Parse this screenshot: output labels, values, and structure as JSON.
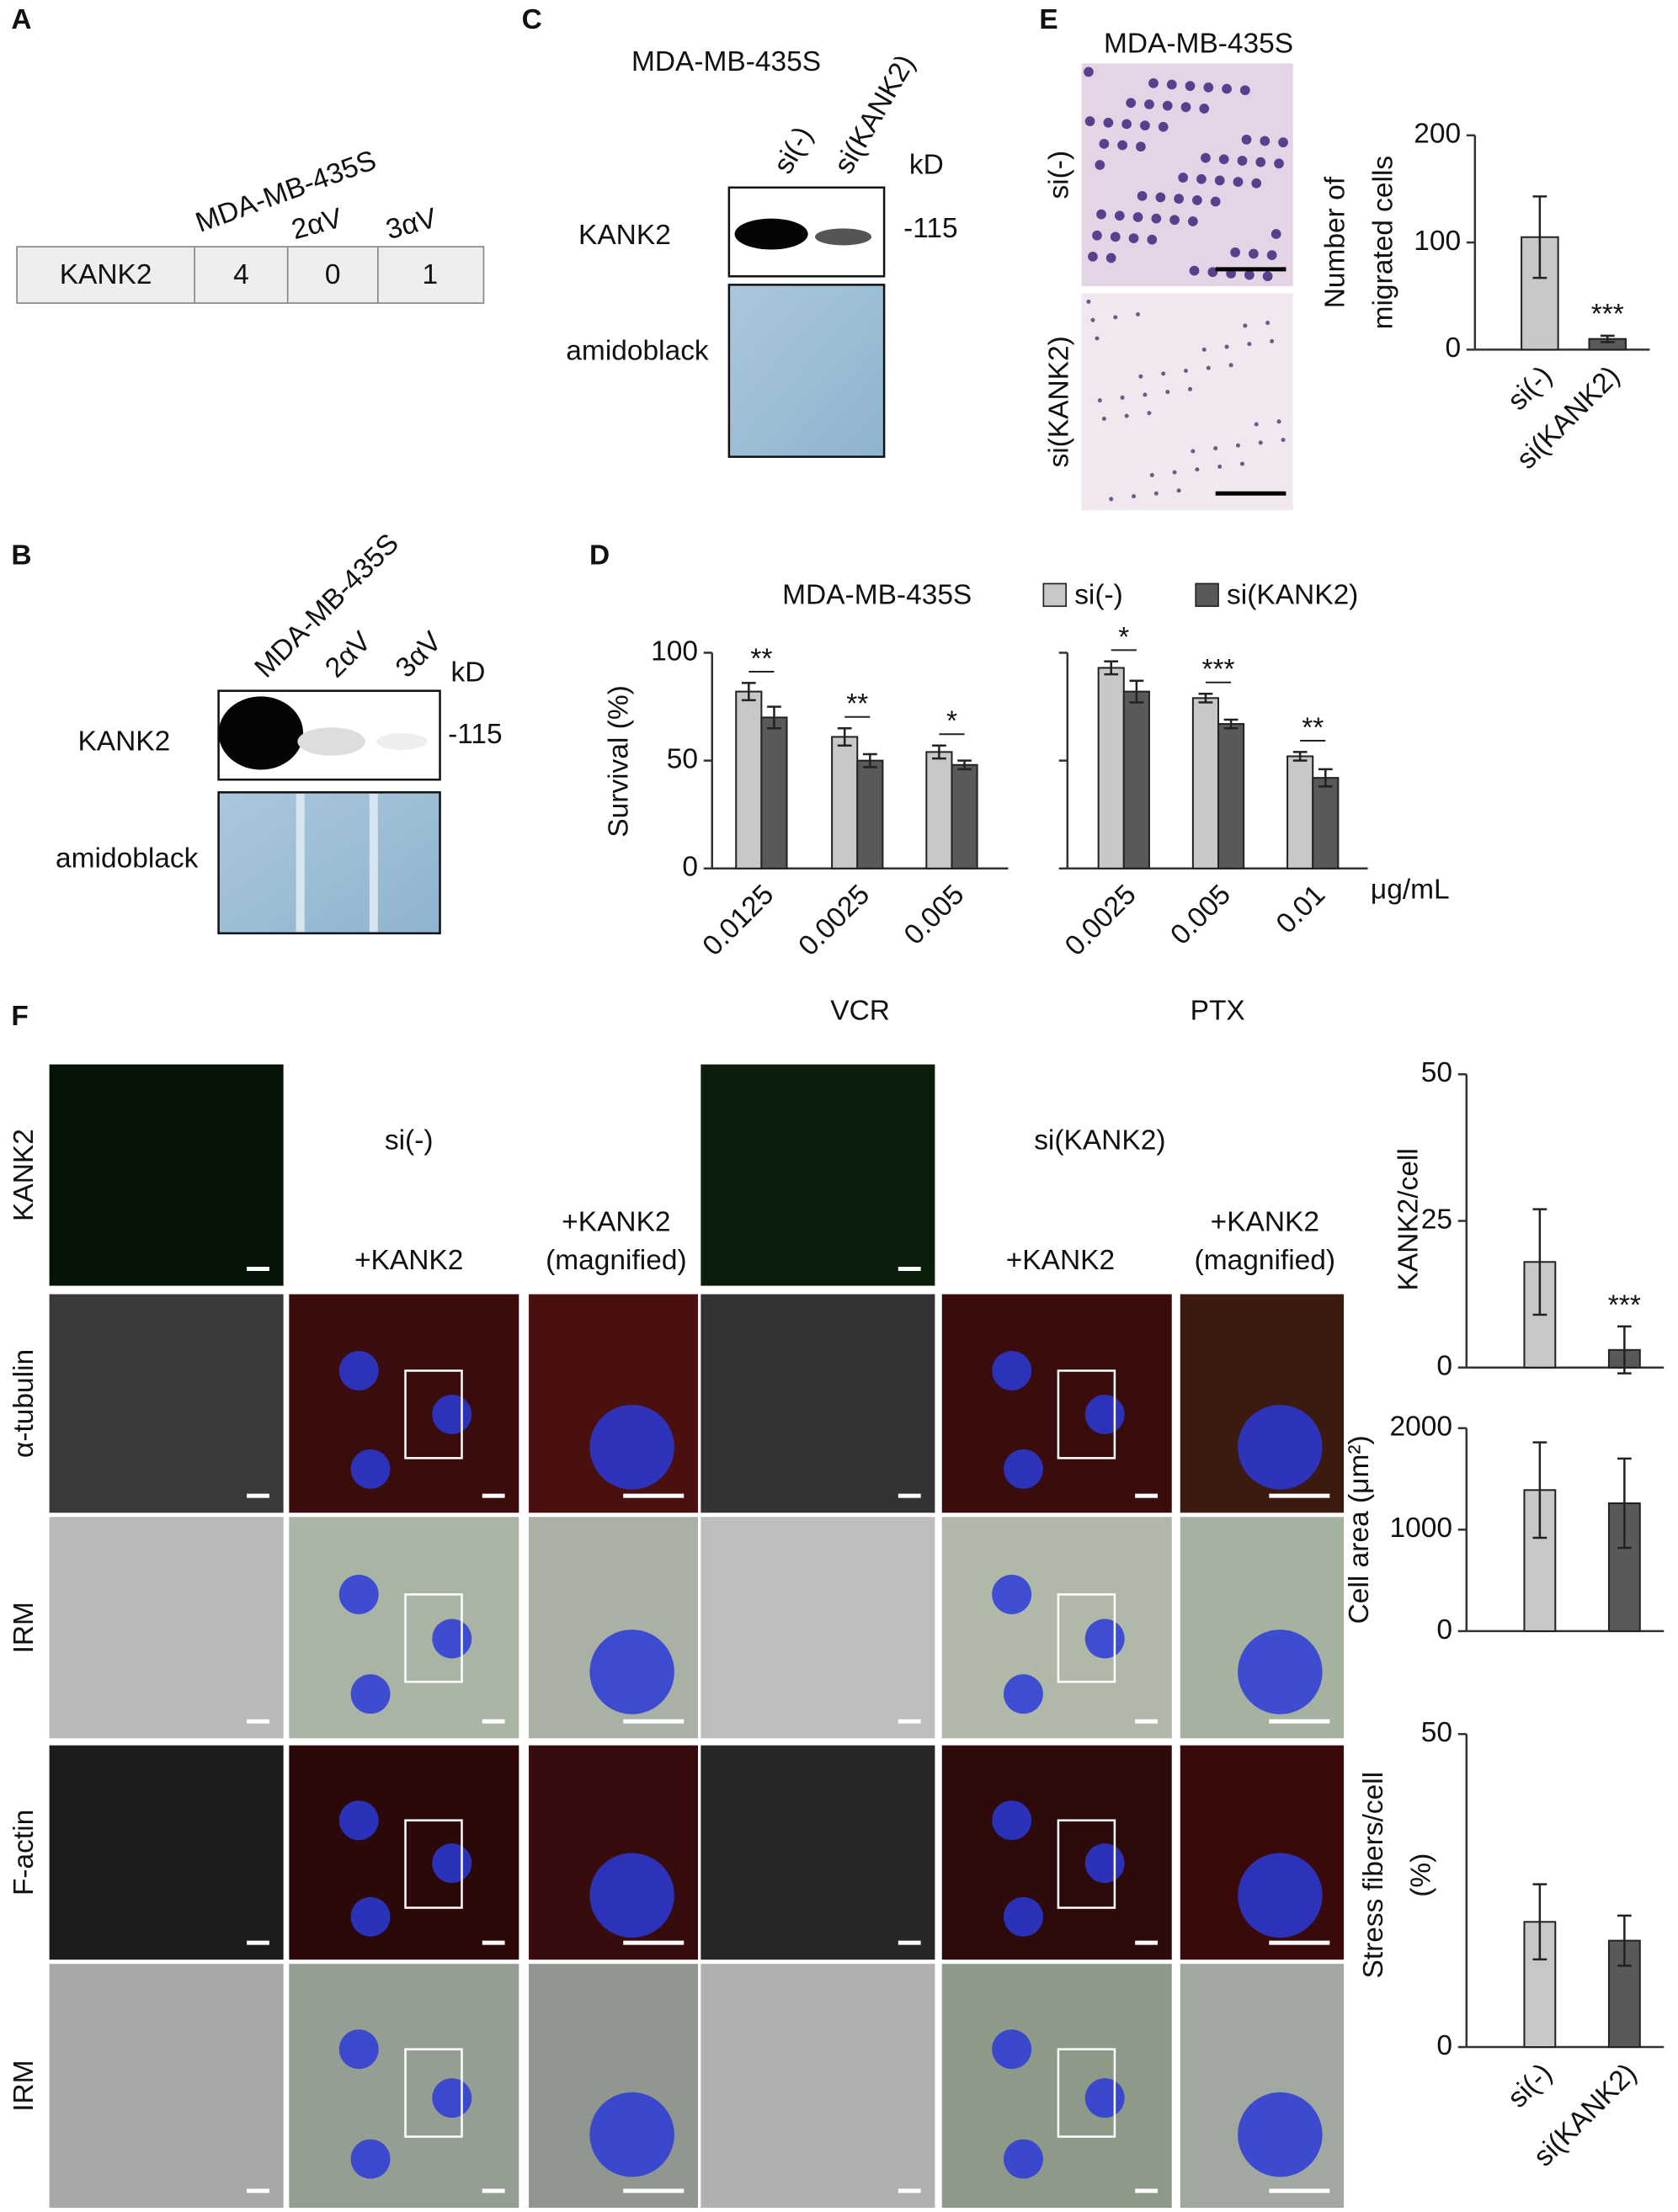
{
  "panel_labels": [
    "A",
    "B",
    "C",
    "D",
    "E",
    "F"
  ],
  "table_a": {
    "headers": [
      "MDA-MB-435S",
      "2αV",
      "3αV"
    ],
    "row": [
      "KANK2",
      "4",
      "0",
      "1"
    ]
  },
  "blot_b": {
    "headers": [
      "MDA-MB-435S",
      "2αV",
      "3αV"
    ],
    "unit": "kD",
    "marker": "-115",
    "rows": [
      "KANK2",
      "amidoblack"
    ]
  },
  "blot_c": {
    "title": "MDA-MB-435S",
    "headers": [
      "si(-)",
      "si(KANK2)"
    ],
    "unit": "kD",
    "marker": "-115",
    "rows": [
      "KANK2",
      "amidoblack"
    ]
  },
  "micro_e": {
    "title": "MDA-MB-435S",
    "rows": [
      "si(-)",
      "si(KANK2)"
    ]
  },
  "micro_f": {
    "conditions": [
      "si(-)",
      "si(KANK2)"
    ],
    "merge_label": "+KANK2",
    "magnified_label": [
      "+KANK2",
      "(magnified)"
    ],
    "rows": [
      "KANK2",
      "α-tubulin",
      "IRM",
      "F-actin",
      "IRM"
    ]
  },
  "chart_data": [
    {
      "type": "bar",
      "ylabel": [
        "Number of",
        "migrated cells"
      ],
      "categories": [
        "si(-)",
        "si(KANK2)"
      ],
      "values": [
        105,
        10
      ],
      "errors": [
        38,
        3
      ],
      "colors": [
        "#c8c8c8",
        "#595959"
      ],
      "ylim": [
        0,
        200
      ],
      "yticks": [
        0,
        100,
        200
      ],
      "annotation": "***"
    },
    {
      "type": "bar",
      "title": "MDA-MB-435S",
      "ylabel": "Survival (%)",
      "xlabel": "VCR",
      "categories": [
        "0.0125",
        "0.0025",
        "0.005"
      ],
      "series": [
        {
          "name": "si(-)",
          "color": "#c8c8c8",
          "values": [
            82,
            61,
            54
          ],
          "errors": [
            4,
            4,
            3
          ]
        },
        {
          "name": "si(KANK2)",
          "color": "#595959",
          "values": [
            70,
            50,
            48
          ],
          "errors": [
            5,
            3,
            2
          ]
        }
      ],
      "significance": [
        "**",
        "**",
        "*"
      ],
      "ylim": [
        0,
        100
      ],
      "yticks": [
        0,
        50,
        100
      ]
    },
    {
      "type": "bar",
      "xlabel": "PTX",
      "unit_label": "μg/mL",
      "categories": [
        "0.0025",
        "0.005",
        "0.01"
      ],
      "series": [
        {
          "color": "#c8c8c8",
          "values": [
            93,
            79,
            52
          ],
          "errors": [
            3,
            2,
            2
          ]
        },
        {
          "color": "#595959",
          "values": [
            82,
            67,
            42
          ],
          "errors": [
            5,
            2,
            4
          ]
        }
      ],
      "significance": [
        "*",
        "***",
        "**"
      ],
      "ylim": [
        0,
        100
      ],
      "yticks": [
        0,
        50,
        100
      ],
      "show_ytick_labels": false
    },
    {
      "type": "bar",
      "ylabel": "KANK2/cell",
      "values": [
        18,
        3
      ],
      "errors": [
        9,
        4
      ],
      "colors": [
        "#c8c8c8",
        "#595959"
      ],
      "ylim": [
        0,
        50
      ],
      "yticks": [
        0,
        25,
        50
      ],
      "annotation": "***"
    },
    {
      "type": "bar",
      "ylabel": "Cell area (μm²)",
      "values": [
        1390,
        1260
      ],
      "errors": [
        470,
        440
      ],
      "colors": [
        "#c8c8c8",
        "#595959"
      ],
      "ylim": [
        0,
        2000
      ],
      "yticks": [
        0,
        1000,
        2000
      ]
    },
    {
      "type": "bar",
      "ylabel": [
        "Stress fibers/cell",
        "(%)"
      ],
      "categories": [
        "si(-)",
        "si(KANK2)"
      ],
      "values": [
        20,
        17
      ],
      "errors": [
        6,
        4
      ],
      "colors": [
        "#c8c8c8",
        "#595959"
      ],
      "ylim": [
        0,
        50
      ],
      "yticks": [
        0,
        50
      ]
    }
  ]
}
